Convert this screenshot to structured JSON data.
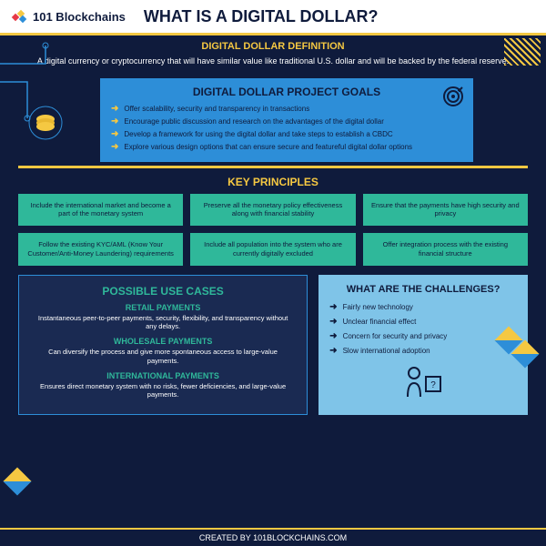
{
  "header": {
    "brand": "101 Blockchains",
    "title": "WHAT IS A DIGITAL DOLLAR?"
  },
  "definition": {
    "heading": "DIGITAL DOLLAR DEFINITION",
    "text": "A digital currency or cryptocurrency that will have similar value like traditional U.S. dollar and will be backed by the federal reserve."
  },
  "goals": {
    "heading": "DIGITAL DOLLAR PROJECT GOALS",
    "items": [
      "Offer scalability, security and transparency in transactions",
      "Encourage public discussion and research on the advantages of the digital dollar",
      "Develop a framework for using the digital dollar and take steps to establish a CBDC",
      "Explore various design options that can ensure secure and featureful digital dollar options"
    ]
  },
  "principles": {
    "heading": "KEY PRINCIPLES",
    "items": [
      "Include the international market and become a part of the monetary system",
      "Preserve all the monetary policy effectiveness along with financial stability",
      "Ensure that the payments have high security and privacy",
      "Follow the existing KYC/AML (Know Your Customer/Anti-Money Laundering) requirements",
      "Include all population into the system who are currently digitally excluded",
      "Offer integration process with the existing financial structure"
    ]
  },
  "usecases": {
    "heading": "POSSIBLE USE CASES",
    "sections": [
      {
        "title": "RETAIL PAYMENTS",
        "text": "Instantaneous peer-to-peer payments, security, flexibility, and transparency without any delays."
      },
      {
        "title": "WHOLESALE PAYMENTS",
        "text": "Can diversify the process and give more spontaneous access to large-value payments."
      },
      {
        "title": "INTERNATIONAL PAYMENTS",
        "text": "Ensures direct monetary system with no risks, fewer deficiencies, and large-value payments."
      }
    ]
  },
  "challenges": {
    "heading": "WHAT ARE THE CHALLENGES?",
    "items": [
      "Fairly new technology",
      "Unclear financial effect",
      "Concern for security and privacy",
      "Slow international adoption"
    ]
  },
  "footer": "CREATED BY 101BLOCKCHAINS.COM",
  "colors": {
    "bg": "#0f1b3c",
    "accent_yellow": "#f5c842",
    "blue": "#2d8ed8",
    "teal": "#2fb89a",
    "light_blue": "#7fc4e8",
    "dark_panel": "#1a2a52"
  }
}
